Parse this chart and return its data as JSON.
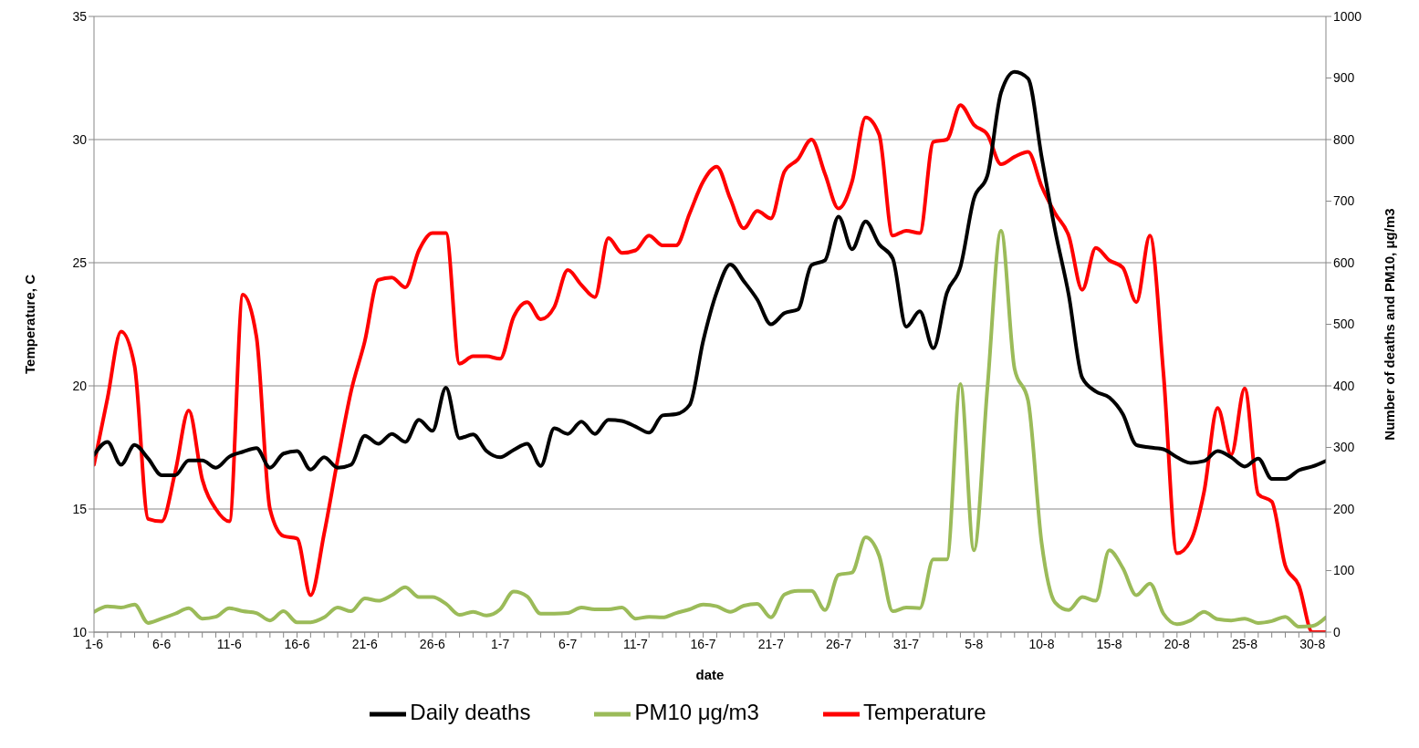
{
  "chart_data": {
    "type": "line",
    "xlabel": "date",
    "ylabel": "Temperature, C",
    "y2label": "Number of deaths and PM10, μg/m3",
    "categories": [
      "1-6",
      null,
      null,
      null,
      null,
      "6-6",
      null,
      null,
      null,
      null,
      "11-6",
      null,
      null,
      null,
      null,
      "16-6",
      null,
      null,
      null,
      null,
      "21-6",
      null,
      null,
      null,
      null,
      "26-6",
      null,
      null,
      null,
      null,
      "1-7",
      null,
      null,
      null,
      null,
      "6-7",
      null,
      null,
      null,
      null,
      "11-7",
      null,
      null,
      null,
      null,
      "16-7",
      null,
      null,
      null,
      null,
      "21-7",
      null,
      null,
      null,
      null,
      "26-7",
      null,
      null,
      null,
      null,
      "31-7",
      null,
      null,
      null,
      null,
      "5-8",
      null,
      null,
      null,
      null,
      "10-8",
      null,
      null,
      null,
      null,
      "15-8",
      null,
      null,
      null,
      null,
      "20-8",
      null,
      null,
      null,
      null,
      "25-8",
      null,
      null,
      null,
      null,
      "30-8",
      null
    ],
    "series": [
      {
        "name": "Temperature",
        "color": "#ff0000",
        "values": [
          16.8,
          19.5,
          22.2,
          20.8,
          14.6,
          14.5,
          16.5,
          19.0,
          16.2,
          15.0,
          14.5,
          23.7,
          22.0,
          15.0,
          13.9,
          13.8,
          11.5,
          14.0,
          17.0,
          19.8,
          21.8,
          24.3,
          24.4,
          24.0,
          25.5,
          26.2,
          26.2,
          20.9,
          21.2,
          21.2,
          21.1,
          22.8,
          23.4,
          22.7,
          23.2,
          24.7,
          24.1,
          23.6,
          26.0,
          25.4,
          25.5,
          26.1,
          25.7,
          25.7,
          27.0,
          28.3,
          28.9,
          27.6,
          26.4,
          27.1,
          26.8,
          28.7,
          29.2,
          30.0,
          28.6,
          27.2,
          28.3,
          30.9,
          30.2,
          26.1,
          26.3,
          26.2,
          29.9,
          30.0,
          31.4,
          30.6,
          30.2,
          29.0,
          29.3,
          29.5,
          28.1,
          27.0,
          26.1,
          23.9,
          25.6,
          25.1,
          24.8,
          23.4,
          26.1,
          20.5,
          13.2,
          13.7,
          15.7,
          19.1,
          17.2,
          19.9,
          15.6,
          15.3,
          12.7,
          11.9,
          10.0,
          10.0
        ]
      },
      {
        "name": "Daily deaths",
        "color": "#000000",
        "axis": "y2",
        "values": [
          288,
          309,
          272,
          304,
          282,
          255,
          255,
          279,
          279,
          267,
          285,
          293,
          299,
          267,
          290,
          294,
          264,
          284,
          267,
          272,
          319,
          306,
          322,
          309,
          345,
          327,
          397,
          315,
          321,
          294,
          284,
          296,
          306,
          270,
          331,
          322,
          342,
          322,
          345,
          343,
          334,
          324,
          352,
          354,
          369,
          473,
          552,
          597,
          570,
          540,
          500,
          518,
          524,
          596,
          604,
          675,
          622,
          667,
          630,
          607,
          496,
          521,
          461,
          551,
          593,
          704,
          742,
          876,
          910,
          899,
          772,
          652,
          548,
          413,
          391,
          381,
          354,
          304,
          300,
          297,
          284,
          275,
          278,
          294,
          284,
          269,
          282,
          249,
          249,
          263,
          269,
          278
        ]
      },
      {
        "name": "PM10 μg/m3",
        "color": "#9bbb59",
        "axis": "y2",
        "values": [
          33,
          42,
          40,
          45,
          15,
          22,
          30,
          39,
          22,
          25,
          39,
          34,
          31,
          19,
          34,
          16,
          16,
          24,
          40,
          34,
          55,
          51,
          60,
          73,
          57,
          57,
          46,
          28,
          33,
          27,
          37,
          66,
          58,
          30,
          30,
          31,
          40,
          37,
          37,
          40,
          22,
          25,
          24,
          31,
          37,
          45,
          42,
          33,
          43,
          46,
          24,
          61,
          67,
          67,
          36,
          93,
          97,
          154,
          124,
          34,
          40,
          39,
          118,
          118,
          403,
          133,
          398,
          652,
          428,
          376,
          145,
          48,
          36,
          57,
          51,
          133,
          104,
          60,
          79,
          30,
          13,
          19,
          33,
          21,
          19,
          22,
          15,
          18,
          25,
          9,
          10,
          24
        ]
      }
    ],
    "ylim": [
      10,
      35
    ],
    "yticks": [
      10,
      15,
      20,
      25,
      30,
      35
    ],
    "y2lim": [
      0,
      1000
    ],
    "y2ticks": [
      0,
      100,
      200,
      300,
      400,
      500,
      600,
      700,
      800,
      900,
      1000
    ],
    "grid": "y",
    "legend": "bottom",
    "line_style": "solid"
  }
}
